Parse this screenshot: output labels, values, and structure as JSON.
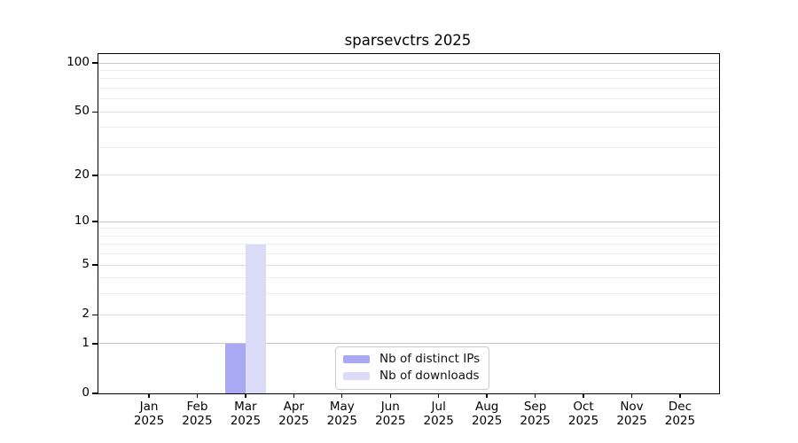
{
  "chart_data": {
    "type": "bar",
    "title": "sparsevctrs 2025",
    "categories": [
      "Jan",
      "Feb",
      "Mar",
      "Apr",
      "May",
      "Jun",
      "Jul",
      "Aug",
      "Sep",
      "Oct",
      "Nov",
      "Dec"
    ],
    "category_year": "2025",
    "series": [
      {
        "name": "Nb of distinct IPs",
        "color": "#a9a9f3",
        "values": [
          0,
          0,
          1,
          0,
          0,
          0,
          0,
          0,
          0,
          0,
          0,
          0
        ]
      },
      {
        "name": "Nb of downloads",
        "color": "#dbdbf8",
        "values": [
          0,
          0,
          7,
          0,
          0,
          0,
          0,
          0,
          0,
          0,
          0,
          0
        ]
      }
    ],
    "yscale": "log1p",
    "yticks_major": [
      0,
      1,
      2,
      5,
      10,
      20,
      50,
      100
    ],
    "yticks_minor": [
      3,
      4,
      6,
      7,
      8,
      9,
      30,
      40,
      60,
      70,
      80,
      90
    ],
    "ylim": [
      0,
      114
    ],
    "grid": "horizontal",
    "legend_position": "inside-bottom-center",
    "colors": {
      "major_gridline": "#c6c6c6",
      "mid_gridline": "#dddddd",
      "minor_gridline": "#ececec",
      "axis": "#000000"
    }
  }
}
